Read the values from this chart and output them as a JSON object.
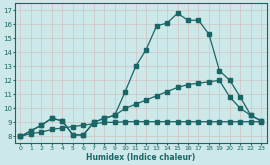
{
  "xlabel": "Humidex (Indice chaleur)",
  "bg_color": "#cce8e8",
  "grid_color": "#d0c8c8",
  "line_color": "#1a6666",
  "xlim": [
    -0.5,
    23.5
  ],
  "ylim": [
    7.5,
    17.5
  ],
  "xticks": [
    0,
    1,
    2,
    3,
    4,
    5,
    6,
    7,
    8,
    9,
    10,
    11,
    12,
    13,
    14,
    15,
    16,
    17,
    18,
    19,
    20,
    21,
    22,
    23
  ],
  "yticks": [
    8,
    9,
    10,
    11,
    12,
    13,
    14,
    15,
    16,
    17
  ],
  "line1_x": [
    0,
    1,
    2,
    3,
    4,
    5,
    6,
    7,
    8,
    9,
    10,
    11,
    12,
    13,
    14,
    15,
    16,
    17,
    18,
    19,
    20,
    21,
    22,
    23
  ],
  "line1_y": [
    8.0,
    8.4,
    8.8,
    9.3,
    9.1,
    8.1,
    8.1,
    9.0,
    9.3,
    9.5,
    11.2,
    13.0,
    14.2,
    15.9,
    16.1,
    16.8,
    16.3,
    16.3,
    15.3,
    12.7,
    12.0,
    10.8,
    9.5,
    9.1
  ],
  "line2_x": [
    0,
    1,
    2,
    3,
    4,
    5,
    6,
    7,
    8,
    9,
    10,
    11,
    12,
    13,
    14,
    15,
    16,
    17,
    18,
    19,
    20,
    21,
    22,
    23
  ],
  "line2_y": [
    8.0,
    8.4,
    8.8,
    9.3,
    9.1,
    8.1,
    8.1,
    9.0,
    9.3,
    9.5,
    10.0,
    10.3,
    10.6,
    10.9,
    11.2,
    11.5,
    11.7,
    11.8,
    11.9,
    12.0,
    10.8,
    10.0,
    9.5,
    9.1
  ],
  "line3_x": [
    0,
    1,
    2,
    3,
    4,
    5,
    6,
    7,
    8,
    9,
    10,
    11,
    12,
    13,
    14,
    15,
    16,
    17,
    18,
    19,
    20,
    21,
    22,
    23
  ],
  "line3_y": [
    8.0,
    8.2,
    8.3,
    8.5,
    8.6,
    8.7,
    8.8,
    8.9,
    9.0,
    9.0,
    9.05,
    9.05,
    9.05,
    9.05,
    9.05,
    9.05,
    9.05,
    9.05,
    9.05,
    9.05,
    9.05,
    9.05,
    9.05,
    9.05
  ]
}
